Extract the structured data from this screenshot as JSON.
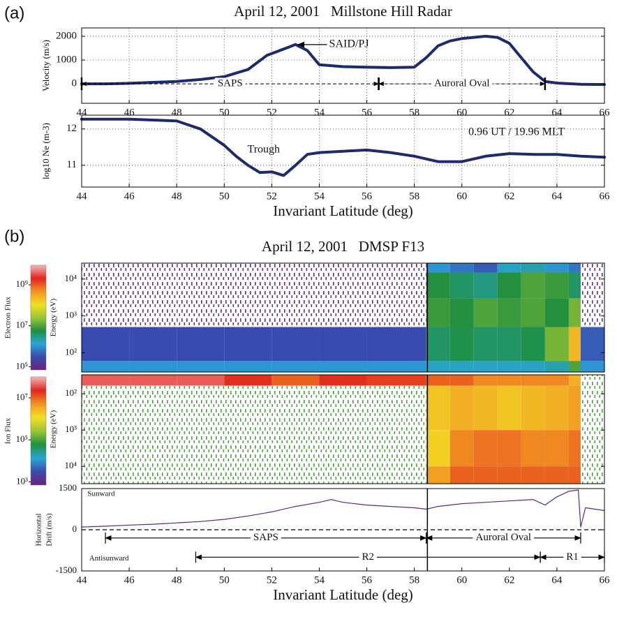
{
  "panel_labels": [
    "(a)",
    "(b)"
  ],
  "chart_data": [
    {
      "type": "line",
      "title": "April 12, 2001   Millstone Hill Radar",
      "ylabel": "Velocity (m/s)",
      "x": [
        44,
        45,
        46,
        47,
        48,
        49,
        50,
        51,
        51.8,
        52.2,
        52.6,
        53,
        53.5,
        54,
        55,
        56,
        57,
        58,
        58.5,
        59,
        59.5,
        60,
        61,
        61.5,
        62,
        62.5,
        63,
        63.5,
        64,
        65,
        66
      ],
      "values": [
        0,
        0,
        20,
        60,
        100,
        180,
        300,
        600,
        1200,
        1350,
        1500,
        1650,
        1400,
        800,
        720,
        700,
        680,
        700,
        1100,
        1600,
        1800,
        1900,
        2000,
        1950,
        1700,
        1100,
        500,
        100,
        30,
        -20,
        -30
      ],
      "color": "#1c2a6e",
      "xlim": [
        44,
        66
      ],
      "xticks": [
        44,
        46,
        48,
        50,
        52,
        54,
        56,
        58,
        60,
        62,
        64,
        66
      ],
      "ylim": [
        -820,
        2350
      ],
      "yticks": [
        0,
        1000,
        2000
      ],
      "grid": true,
      "annotations": [
        {
          "text": "SAID/PJ",
          "x": 55.25,
          "y": 1650,
          "arrow_to": [
            53.1,
            1650
          ]
        }
      ],
      "span_dash": true,
      "spans": [
        {
          "label": "SAPS",
          "x": [
            44,
            56.5
          ],
          "y": 0
        },
        {
          "label": "Auroral Oval",
          "x": [
            56.5,
            63.5
          ],
          "y": 0
        }
      ]
    },
    {
      "type": "line",
      "ylabel": "log10 Ne (m-3)",
      "xlabel": "Invariant Latitude (deg)",
      "x": [
        44,
        46,
        48,
        49,
        50,
        50.5,
        51,
        51.5,
        52,
        52.5,
        53,
        53.5,
        54,
        56,
        57,
        58,
        59,
        60,
        61,
        62,
        63,
        64,
        65,
        66
      ],
      "values": [
        12.27,
        12.27,
        12.22,
        12.0,
        11.55,
        11.25,
        11.0,
        10.8,
        10.82,
        10.72,
        11.0,
        11.3,
        11.35,
        11.42,
        11.35,
        11.25,
        11.1,
        11.1,
        11.25,
        11.32,
        11.3,
        11.3,
        11.25,
        11.22
      ],
      "color": "#1c2a6e",
      "xlim": [
        44,
        66
      ],
      "xticks": [
        44,
        46,
        48,
        50,
        52,
        54,
        56,
        58,
        60,
        62,
        64,
        66
      ],
      "ylim": [
        10.4,
        12.38
      ],
      "yticks": [
        11,
        12
      ],
      "grid": true,
      "annotations": [
        {
          "text": "Trough",
          "x": 51.66,
          "y": 11.42
        },
        {
          "text": "0.96 UT / 19.96 MLT",
          "x": 62.3,
          "y": 11.9
        }
      ]
    },
    {
      "type": "heatmap",
      "title": "April 12, 2001   DMSP F13",
      "ylabel": "Energy (eV)",
      "xlim": [
        44,
        66
      ],
      "ylim": [
        30,
        27000
      ],
      "ylog": true,
      "yticks": [
        {
          "value": 10000,
          "label": "10⁴"
        },
        {
          "value": 1000,
          "label": "10³"
        },
        {
          "value": 100,
          "label": "10²"
        }
      ],
      "x_bins": [
        44,
        46,
        48,
        50,
        52,
        54,
        56,
        58.5,
        59.5,
        60.5,
        61.5,
        62.5,
        63.5,
        64.5,
        65,
        66
      ],
      "y_bins": [
        30,
        60,
        500,
        3000,
        15000,
        27000
      ],
      "values": [
        [
          1000000.0,
          1000000.0,
          1000000.0,
          1000000.0,
          1000000.0,
          1000000.0,
          1000000.0,
          1600000.0,
          1600000.0,
          1600000.0,
          1600000.0,
          1600000.0,
          2000000.0,
          10000000.0,
          1000000.0
        ],
        [
          300000.0,
          300000.0,
          300000.0,
          300000.0,
          300000.0,
          300000.0,
          300000.0,
          4000000.0,
          5000000.0,
          4000000.0,
          4000000.0,
          5000000.0,
          16000000.0,
          250000000.0,
          400000.0
        ],
        [
          100000.0,
          100000.0,
          100000.0,
          100000.0,
          100000.0,
          100000.0,
          100000.0,
          8000000.0,
          6000000.0,
          10000000.0,
          8000000.0,
          10000000.0,
          6000000.0,
          16000000.0,
          160000.0
        ],
        [
          100000.0,
          100000.0,
          100000.0,
          100000.0,
          100000.0,
          100000.0,
          100000.0,
          6000000.0,
          4000000.0,
          3000000.0,
          6000000.0,
          10000000.0,
          8000000.0,
          4000000.0,
          100000.0
        ],
        [
          100000.0,
          100000.0,
          100000.0,
          100000.0,
          100000.0,
          100000.0,
          100000.0,
          1000000.0,
          600000.0,
          400000.0,
          1600000.0,
          2000000.0,
          1000000.0,
          600000.0,
          100000.0
        ]
      ],
      "sparse": [
        [
          0,
          0,
          0,
          0,
          0,
          0,
          0,
          0,
          0,
          0,
          0,
          0,
          0,
          0,
          0
        ],
        [
          0,
          0,
          0,
          0,
          0,
          0,
          0,
          0,
          0,
          0,
          0,
          0,
          0,
          0,
          0
        ],
        [
          1,
          1,
          1,
          1,
          1,
          1,
          1,
          0,
          0,
          0,
          0,
          0,
          0,
          0,
          1
        ],
        [
          1,
          1,
          1,
          1,
          1,
          1,
          1,
          0,
          0,
          0,
          0,
          0,
          0,
          0,
          1
        ],
        [
          1,
          1,
          1,
          1,
          1,
          1,
          1,
          0,
          0,
          0,
          0,
          0,
          0,
          0,
          1
        ]
      ],
      "colormap": [
        "#6a2277",
        "#3a4bb0",
        "#2aa6d6",
        "#1f8f3e",
        "#9cc536",
        "#f2e024",
        "#f29322",
        "#e0251e",
        "#f4b8b8"
      ],
      "colorbar": {
        "label": "Electron Flux",
        "lim": [
          70000.0,
          9000000000.0
        ],
        "ticks": [
          {
            "value": 1000000000.0,
            "label": "10⁹"
          },
          {
            "value": 10000000.0,
            "label": "10⁷"
          },
          {
            "value": 100000.0,
            "label": "10⁵"
          }
        ]
      },
      "vline": 58.55
    },
    {
      "type": "heatmap",
      "ylabel": "Energy (eV)",
      "xlim": [
        44,
        66
      ],
      "ylim": [
        30,
        30000
      ],
      "ylog": true,
      "y_inverted": true,
      "yticks": [
        {
          "value": 100,
          "label": "10²"
        },
        {
          "value": 1000,
          "label": "10³"
        },
        {
          "value": 10000,
          "label": "10⁴"
        }
      ],
      "x_bins": [
        44,
        46,
        48,
        50,
        52,
        54,
        56,
        58.5,
        59.5,
        60.5,
        61.5,
        62.5,
        63.5,
        64.5,
        65,
        66
      ],
      "y_bins": [
        30,
        60,
        1000,
        10000,
        30000
      ],
      "values": [
        [
          40000000.0,
          40000000.0,
          40000000.0,
          20000000.0,
          10000000.0,
          20000000.0,
          16000000.0,
          10000000.0,
          10000000.0,
          6000000.0,
          6000000.0,
          6000000.0,
          6000000.0,
          3000000.0,
          100000.0
        ],
        [
          100000.0,
          100000.0,
          100000.0,
          100000.0,
          100000.0,
          100000.0,
          100000.0,
          2000000.0,
          3000000.0,
          2500000.0,
          2000000.0,
          2500000.0,
          3000000.0,
          4000000.0,
          100000.0
        ],
        [
          100000.0,
          100000.0,
          100000.0,
          100000.0,
          100000.0,
          100000.0,
          100000.0,
          1600000.0,
          6000000.0,
          8000000.0,
          8000000.0,
          6000000.0,
          6000000.0,
          8000000.0,
          100000.0
        ],
        [
          100000.0,
          100000.0,
          100000.0,
          100000.0,
          100000.0,
          100000.0,
          100000.0,
          4000000.0,
          10000000.0,
          10000000.0,
          10000000.0,
          10000000.0,
          10000000.0,
          10000000.0,
          100000.0
        ]
      ],
      "sparse": [
        [
          0,
          0,
          0,
          0,
          0,
          0,
          0,
          0,
          0,
          0,
          0,
          0,
          0,
          0,
          1
        ],
        [
          1,
          1,
          1,
          1,
          1,
          1,
          1,
          0,
          0,
          0,
          0,
          0,
          0,
          0,
          1
        ],
        [
          1,
          1,
          1,
          1,
          1,
          1,
          1,
          0,
          0,
          0,
          0,
          0,
          0,
          0,
          1
        ],
        [
          1,
          1,
          1,
          1,
          1,
          1,
          1,
          0,
          0,
          0,
          0,
          0,
          0,
          0,
          1
        ]
      ],
      "colormap": [
        "#6a2277",
        "#3a4bb0",
        "#2aa6d6",
        "#1f8f3e",
        "#9cc536",
        "#f2e024",
        "#f29322",
        "#e0251e",
        "#f4b8b8"
      ],
      "colorbar": {
        "label": "Ion Flux",
        "lim": [
          700.0,
          100000000.0
        ],
        "ticks": [
          {
            "value": 10000000.0,
            "label": "10⁷"
          },
          {
            "value": 100000.0,
            "label": "10⁵"
          },
          {
            "value": 1000.0,
            "label": "10³"
          }
        ]
      },
      "vline": 58.55
    },
    {
      "type": "line",
      "ylabel": [
        "Horizontal",
        "Drift (m/s)"
      ],
      "xlabel": "Invariant Latitude (deg)",
      "x": [
        44,
        45,
        46,
        47,
        48,
        49,
        50,
        51,
        52,
        53,
        54,
        54.5,
        55,
        56,
        57,
        58,
        58.5,
        59,
        60,
        61,
        62,
        63,
        63.5,
        64,
        64.5,
        64.9,
        65,
        65.2,
        66
      ],
      "values": [
        100,
        130,
        170,
        200,
        250,
        300,
        380,
        500,
        650,
        850,
        1000,
        1100,
        1000,
        900,
        850,
        800,
        750,
        850,
        950,
        1000,
        1050,
        1100,
        900,
        1200,
        1400,
        1450,
        100,
        800,
        700
      ],
      "color": "#5a2a7c",
      "xlim": [
        44,
        66
      ],
      "xticks": [
        44,
        46,
        48,
        50,
        52,
        54,
        56,
        58,
        60,
        62,
        64,
        66
      ],
      "ylim": [
        -1500,
        1500
      ],
      "yticks": [
        1500,
        0,
        -1500
      ],
      "zero_line": true,
      "vline": 58.55,
      "annotations": [
        {
          "text": "Sunward",
          "x": 44.82,
          "y": 1300
        },
        {
          "text": "Antisunward",
          "x": 45.15,
          "y": -1050
        }
      ],
      "spans": [
        {
          "label": "SAPS",
          "x": [
            45,
            58.5
          ],
          "y": -300
        },
        {
          "label": "Auroral Oval",
          "x": [
            58.5,
            65
          ],
          "y": -300
        },
        {
          "label": "R2",
          "x": [
            48.8,
            63.3
          ],
          "y": -1000
        },
        {
          "label": "R1",
          "x": [
            63.3,
            66
          ],
          "y": -1000
        }
      ]
    }
  ]
}
